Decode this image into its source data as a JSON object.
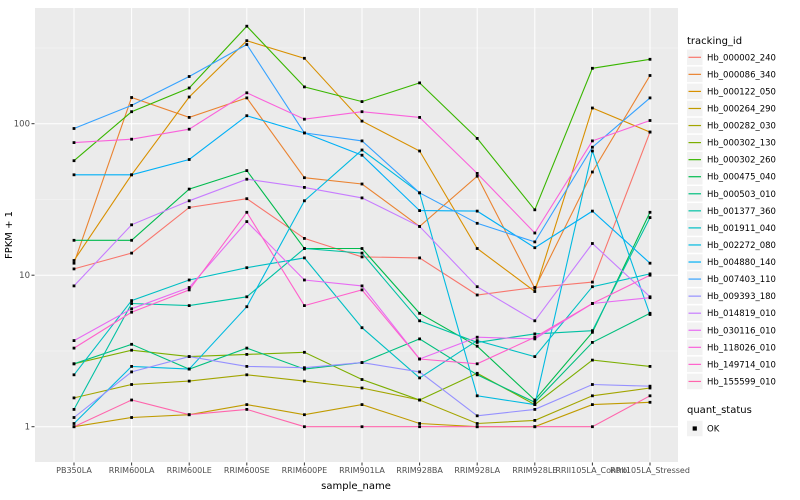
{
  "chart_data": {
    "type": "line",
    "title": "",
    "xlabel": "sample_name",
    "ylabel": "FPKM + 1",
    "y_scale": "log10",
    "y_ticks": [
      1,
      10,
      100
    ],
    "y_tick_labels": [
      "1",
      "10",
      "100"
    ],
    "y_minor_ticks": [
      3.162,
      31.62,
      316.2
    ],
    "ylim": [
      0.6,
      580
    ],
    "grid": true,
    "legend_position": "right",
    "point_shape": "filled-square",
    "point_color": "#000000",
    "x_categories": [
      "PB350LA",
      "RRIM600LA",
      "RRIM600LE",
      "RRIM600SE",
      "RRIM600PE",
      "RRIM901LA",
      "RRIM928BA",
      "RRIM928LA",
      "RRIM928LE",
      "RRII105LA_Control",
      "RRII105LA_Stressed"
    ],
    "series": [
      {
        "name": "Hb_000002_240",
        "color": "#F8766D",
        "values": [
          11,
          14,
          28,
          32,
          17.5,
          13.2,
          13,
          7.4,
          8.3,
          9,
          88
        ]
      },
      {
        "name": "Hb_000086_340",
        "color": "#EA8331",
        "values": [
          12,
          149,
          110,
          148,
          44,
          40,
          21,
          45,
          8.2,
          48,
          208
        ]
      },
      {
        "name": "Hb_000122_050",
        "color": "#D89000",
        "values": [
          12.5,
          46,
          150,
          353,
          270,
          104,
          66,
          15,
          7.8,
          127,
          88
        ]
      },
      {
        "name": "Hb_000264_290",
        "color": "#C09B00",
        "values": [
          1.0,
          1.15,
          1.2,
          1.4,
          1.2,
          1.4,
          1.05,
          1.0,
          1.0,
          1.4,
          1.45
        ]
      },
      {
        "name": "Hb_000282_030",
        "color": "#A3A500",
        "values": [
          1.55,
          1.9,
          2.0,
          2.2,
          2.0,
          1.8,
          1.5,
          1.05,
          1.1,
          1.6,
          1.8
        ]
      },
      {
        "name": "Hb_000302_130",
        "color": "#7CAE00",
        "values": [
          2.6,
          3.2,
          2.9,
          3.0,
          3.1,
          2.05,
          1.5,
          2.25,
          1.4,
          2.75,
          2.5
        ]
      },
      {
        "name": "Hb_000302_260",
        "color": "#39B600",
        "values": [
          57,
          120,
          172,
          440,
          175,
          140,
          186,
          80,
          27,
          232,
          266
        ]
      },
      {
        "name": "Hb_000475_040",
        "color": "#00BB4E",
        "values": [
          17,
          17,
          37,
          49,
          15,
          15,
          5.6,
          3.4,
          1.5,
          4.2,
          26
        ]
      },
      {
        "name": "Hb_000503_010",
        "color": "#00BF7D",
        "values": [
          2.6,
          3.5,
          2.4,
          3.3,
          2.4,
          2.65,
          3.8,
          2.2,
          1.45,
          3.6,
          5.6
        ]
      },
      {
        "name": "Hb_001377_360",
        "color": "#00C1A3",
        "values": [
          1.3,
          6.5,
          6.3,
          7.2,
          15,
          14,
          5.0,
          3.6,
          4.1,
          4.3,
          24
        ]
      },
      {
        "name": "Hb_001911_040",
        "color": "#00BFC4",
        "values": [
          2.2,
          6.8,
          9.3,
          11.2,
          13,
          4.5,
          2.1,
          3.7,
          2.9,
          8.4,
          10.2
        ]
      },
      {
        "name": "Hb_002272_080",
        "color": "#00BAE0",
        "values": [
          1.05,
          2.5,
          2.4,
          6.2,
          31,
          67,
          35,
          1.6,
          1.4,
          66,
          5.5
        ]
      },
      {
        "name": "Hb_004880_140",
        "color": "#00B0F6",
        "values": [
          46,
          46,
          58,
          113,
          87,
          62,
          26.7,
          26.5,
          15.2,
          26.5,
          12
        ]
      },
      {
        "name": "Hb_007403_110",
        "color": "#35A2FF",
        "values": [
          93,
          132,
          205,
          333,
          87,
          77,
          35,
          22,
          16.6,
          70,
          148
        ]
      },
      {
        "name": "Hb_009393_180",
        "color": "#9590FF",
        "values": [
          1.15,
          2.3,
          2.9,
          2.5,
          2.45,
          2.65,
          2.3,
          1.18,
          1.3,
          1.9,
          1.85
        ]
      },
      {
        "name": "Hb_014819_010",
        "color": "#C77CFF",
        "values": [
          8.5,
          21.5,
          31,
          43,
          38,
          32.4,
          21,
          8.4,
          5.0,
          16.2,
          7.2
        ]
      },
      {
        "name": "Hb_030116_010",
        "color": "#E76BF3",
        "values": [
          3.7,
          6.0,
          8.3,
          22.6,
          9.3,
          8.5,
          2.8,
          3.9,
          3.8,
          6.5,
          7.1
        ]
      },
      {
        "name": "Hb_118026_010",
        "color": "#FA62DB",
        "values": [
          75,
          79,
          92,
          160,
          107,
          120,
          110,
          47,
          19,
          77,
          105
        ]
      },
      {
        "name": "Hb_149714_010",
        "color": "#FF61CC",
        "values": [
          3.3,
          5.7,
          8.0,
          26,
          6.3,
          8.0,
          2.8,
          2.6,
          3.9,
          6.5,
          10
        ]
      },
      {
        "name": "Hb_155599_010",
        "color": "#FF65AC",
        "values": [
          1.0,
          1.5,
          1.2,
          1.3,
          1.0,
          1.0,
          1.0,
          1.0,
          1.0,
          1.0,
          1.6
        ]
      }
    ]
  },
  "legend": {
    "color_title": "tracking_id",
    "shape_title": "quant_status",
    "shape_items": [
      {
        "label": "OK"
      }
    ]
  },
  "colors": {
    "panel_bg": "#EBEBEB",
    "grid_major": "#FFFFFF",
    "grid_minor": "#F5F5F5",
    "axis_text": "#4D4D4D",
    "tick_mark": "#333333",
    "legend_key_bg": "#F2F2F2",
    "background": "#FFFFFF"
  }
}
